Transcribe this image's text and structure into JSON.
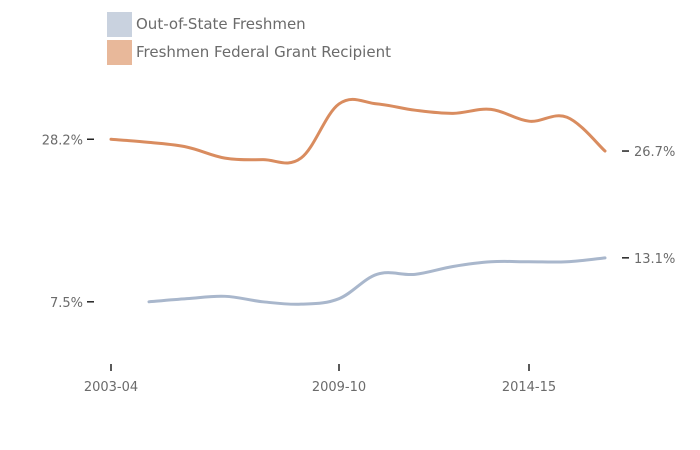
{
  "chart_data": {
    "type": "line",
    "title": "",
    "xlabel": "",
    "ylabel": "",
    "x_tick_labels": [
      {
        "year": 2003,
        "label": "2003-04"
      },
      {
        "year": 2009,
        "label": "2009-10"
      },
      {
        "year": 2014,
        "label": "2014-15"
      }
    ],
    "y_tick_labels": [
      {
        "value": 28.2,
        "label": "28.2%"
      },
      {
        "value": 7.5,
        "label": "7.5%"
      }
    ],
    "series": [
      {
        "name": "Out-of-State Freshmen",
        "color": "#a9b7cc",
        "legend_color": "#c9d2df",
        "end_label": "13.1%",
        "points": [
          [
            2004,
            7.5
          ],
          [
            2005,
            7.9
          ],
          [
            2006,
            8.2
          ],
          [
            2007,
            7.5
          ],
          [
            2008,
            7.2
          ],
          [
            2009,
            7.9
          ],
          [
            2010,
            11.0
          ],
          [
            2011,
            11.0
          ],
          [
            2012,
            12.0
          ],
          [
            2013,
            12.6
          ],
          [
            2014,
            12.6
          ],
          [
            2015,
            12.6
          ],
          [
            2016,
            13.1
          ]
        ]
      },
      {
        "name": "Freshmen Federal Grant Recipient",
        "color": "#d98c5f",
        "legend_color": "#e8b89a",
        "end_label": "26.7%",
        "points": [
          [
            2003,
            28.2
          ],
          [
            2004,
            27.8
          ],
          [
            2005,
            27.2
          ],
          [
            2006,
            25.8
          ],
          [
            2007,
            25.6
          ],
          [
            2008,
            25.8
          ],
          [
            2009,
            32.7
          ],
          [
            2010,
            32.7
          ],
          [
            2011,
            31.9
          ],
          [
            2012,
            31.5
          ],
          [
            2013,
            32.0
          ],
          [
            2014,
            30.5
          ],
          [
            2015,
            31.0
          ],
          [
            2016,
            26.7
          ]
        ]
      }
    ],
    "xlim": [
      2003,
      2016
    ],
    "ylim": [
      2.0,
      36.0
    ],
    "grid": false,
    "legend_position": "top-left"
  }
}
